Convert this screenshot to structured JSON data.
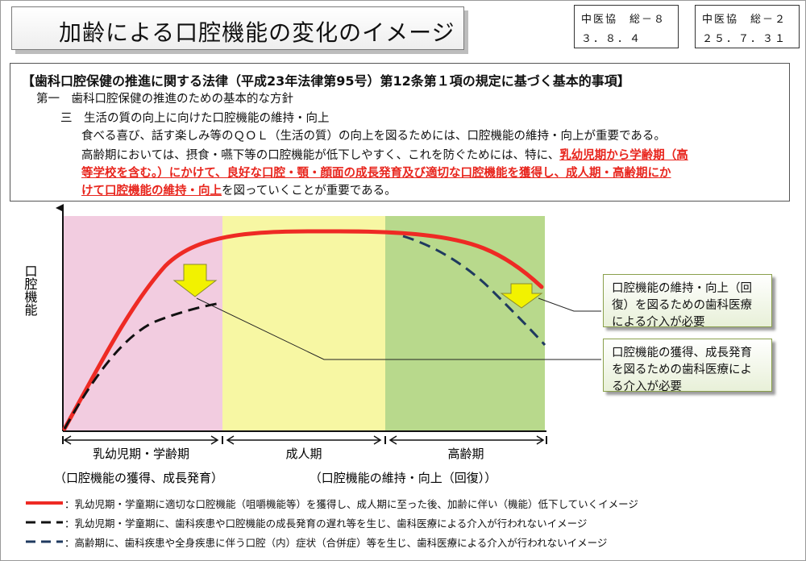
{
  "header": {
    "title": "加齢による口腔機能の変化のイメージ",
    "code1": {
      "line1": "中医協　総－８",
      "line2": "３．８．４"
    },
    "code2": {
      "line1": "中医協　総－２",
      "line2": "２５．７．３１"
    }
  },
  "law": {
    "heading": "【歯科口腔保健の推進に関する法律（平成23年法律第95号）第12条第１項の規定に基づく基本的事項】",
    "item1": "第一　歯科口腔保健の推進のための基本的な方針",
    "item2": "三　生活の質の向上に向けた口腔機能の維持・向上",
    "para1": "食べる喜び、話す楽しみ等のＱＯＬ（生活の質）の向上を図るためには、口腔機能の維持・向上が重要である。",
    "para2_lead": "高齢期においては、摂食・嚥下等の口腔機能が低下しやすく、これを防ぐためには、特に、",
    "para2_red1": "乳幼児期から学齢期（高",
    "para2_red2": "等学校を含む。）にかけて、良好な口腔・顎・顔面の成長発育及び適切な口腔機能を獲得し、成人期・高齢期にか",
    "para2_red3": "けて口腔機能の維持・向上",
    "para2_tail": "を図っていくことが重要である。"
  },
  "diagram": {
    "y_label": "口腔機能",
    "zones": [
      {
        "color": "#f2cce0"
      },
      {
        "color": "#f7f7a3"
      },
      {
        "color": "#b8d98c"
      }
    ],
    "periods": [
      "乳幼児期・学齢期",
      "成人期",
      "高齢期"
    ],
    "sub_labels": [
      "（口腔機能の獲得、成長発育）",
      "（口腔機能の維持・向上（回復））"
    ],
    "notes": [
      {
        "text": "口腔機能の維持・向上（回復）を図るための歯科医療による介入が必要"
      },
      {
        "text": "口腔機能の獲得、成長発育を図るための歯科医療による介入が必要"
      }
    ],
    "colors": {
      "red_line": "#ee2a24",
      "black_dash": "#111111",
      "navy_dash": "#1f3a5f",
      "arrow": "#f2f200"
    }
  },
  "legend": [
    {
      "style": "red-solid",
      "text": "：乳幼児期・学童期に適切な口腔機能（咀嚼機能等）を獲得し、成人期に至った後、加齢に伴い（機能）低下していくイメージ"
    },
    {
      "style": "black-dash",
      "text": "：乳幼児期・学童期に、歯科疾患や口腔機能の成長発育の遅れ等を生じ、歯科医療による介入が行われないイメージ"
    },
    {
      "style": "navy-dash",
      "text": "：高齢期に、歯科疾患や全身疾患に伴う口腔（内）症状（合併症）等を生じ、歯科医療による介入が行われないイメージ"
    }
  ]
}
